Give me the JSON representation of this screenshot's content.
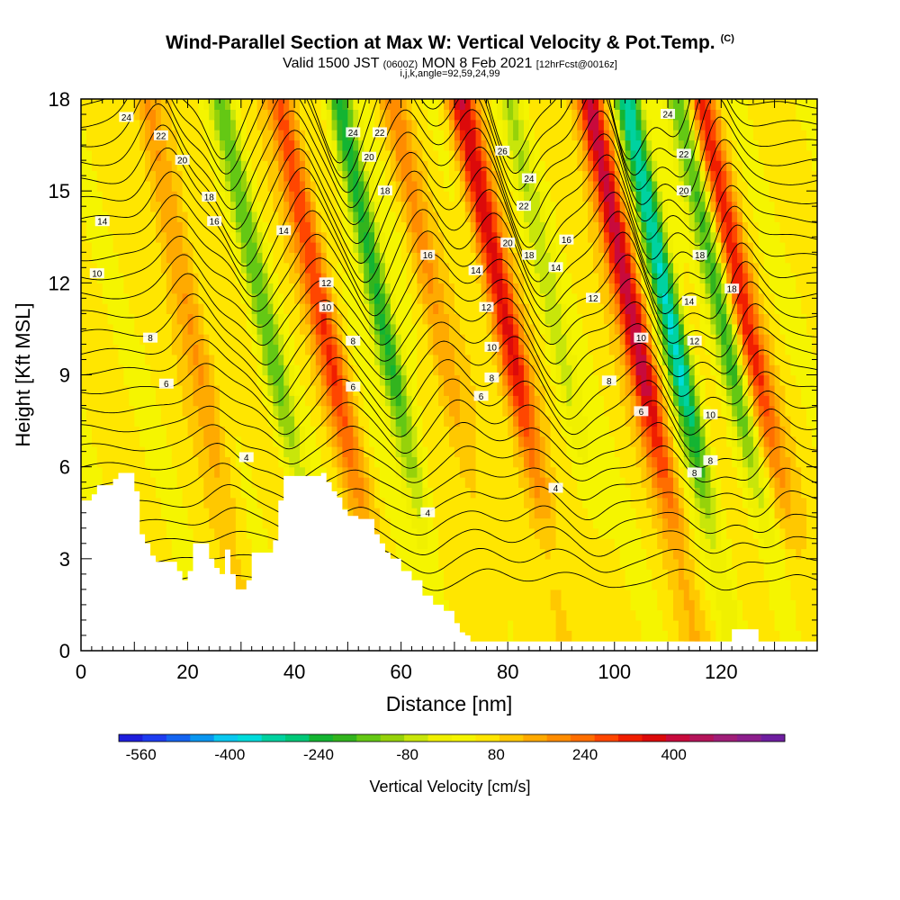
{
  "header": {
    "title": "Wind-Parallel Section at Max W: Vertical Velocity & Pot.Temp.",
    "copyright": "(C)",
    "valid_prefix": "Valid 1500 JST",
    "valid_utc": "(0600Z)",
    "valid_day": "MON 8 Feb 2021",
    "forecast": "[12hrFcst@0016z]",
    "indices": "i,j,k,angle=92,59,24,99"
  },
  "chart_data": {
    "type": "heatmap",
    "title": "Wind-Parallel Section at Max W: Vertical Velocity & Pot.Temp.",
    "xlabel": "Distance [nm]",
    "ylabel": "Height [Kft MSL]",
    "xlim": [
      0,
      138
    ],
    "ylim": [
      0,
      18
    ],
    "xticks": [
      0,
      20,
      40,
      60,
      80,
      100,
      120
    ],
    "yticks": [
      0,
      3,
      6,
      9,
      12,
      15,
      18
    ],
    "colorbar": {
      "label": "Vertical Velocity [cm/s]",
      "ticks": [
        -560,
        -400,
        -240,
        -80,
        80,
        240,
        400
      ],
      "range": [
        -600,
        600
      ],
      "colors": [
        "#1e1edc",
        "#1e3cf0",
        "#1464f0",
        "#0a96f0",
        "#0ac8f0",
        "#00dcdc",
        "#00d2a0",
        "#00c878",
        "#14b432",
        "#32b41e",
        "#64c814",
        "#96d20a",
        "#c8e60a",
        "#f0f000",
        "#f5f500",
        "#ffe600",
        "#ffc800",
        "#ffaa00",
        "#ff8c00",
        "#ff6e00",
        "#ff4600",
        "#f01e00",
        "#dc0a0a",
        "#c80a3c",
        "#b4145a",
        "#a01e78",
        "#8c1e8c",
        "#6e1ea0"
      ]
    },
    "updrafts": [
      {
        "x": 85,
        "w": 320
      },
      {
        "x": 109,
        "w": 380
      },
      {
        "x": 130,
        "w": 260
      },
      {
        "x": 51,
        "w": 240
      },
      {
        "x": 72,
        "w": 120
      },
      {
        "x": 26,
        "w": 140
      }
    ],
    "downdrafts": [
      {
        "x": 62,
        "w": -300
      },
      {
        "x": 116,
        "w": -420
      },
      {
        "x": 40,
        "w": -200
      },
      {
        "x": 94,
        "w": -120
      },
      {
        "x": 126,
        "w": -240
      }
    ],
    "contour_labels": [
      {
        "x": 8.5,
        "y": 17.4,
        "text": "24"
      },
      {
        "x": 15,
        "y": 16.8,
        "text": "22"
      },
      {
        "x": 19,
        "y": 16.0,
        "text": "20"
      },
      {
        "x": 24,
        "y": 14.8,
        "text": "18"
      },
      {
        "x": 25,
        "y": 14.0,
        "text": "16"
      },
      {
        "x": 4,
        "y": 14.0,
        "text": "14"
      },
      {
        "x": 38,
        "y": 13.7,
        "text": "14"
      },
      {
        "x": 3,
        "y": 12.3,
        "text": "10"
      },
      {
        "x": 46,
        "y": 12.0,
        "text": "12"
      },
      {
        "x": 46,
        "y": 11.2,
        "text": "10"
      },
      {
        "x": 13,
        "y": 10.2,
        "text": "8"
      },
      {
        "x": 16,
        "y": 8.7,
        "text": "6"
      },
      {
        "x": 31,
        "y": 6.3,
        "text": "4"
      },
      {
        "x": 51,
        "y": 10.1,
        "text": "8"
      },
      {
        "x": 51,
        "y": 8.6,
        "text": "6"
      },
      {
        "x": 51,
        "y": 16.9,
        "text": "24"
      },
      {
        "x": 56,
        "y": 16.9,
        "text": "22"
      },
      {
        "x": 54,
        "y": 16.1,
        "text": "20"
      },
      {
        "x": 57,
        "y": 15.0,
        "text": "18"
      },
      {
        "x": 65,
        "y": 12.9,
        "text": "16"
      },
      {
        "x": 74,
        "y": 12.4,
        "text": "14"
      },
      {
        "x": 76,
        "y": 11.2,
        "text": "12"
      },
      {
        "x": 77,
        "y": 9.9,
        "text": "10"
      },
      {
        "x": 77,
        "y": 8.9,
        "text": "8"
      },
      {
        "x": 75,
        "y": 8.3,
        "text": "6"
      },
      {
        "x": 65,
        "y": 4.5,
        "text": "4"
      },
      {
        "x": 79,
        "y": 16.3,
        "text": "26"
      },
      {
        "x": 84,
        "y": 15.4,
        "text": "24"
      },
      {
        "x": 83,
        "y": 14.5,
        "text": "22"
      },
      {
        "x": 80,
        "y": 13.3,
        "text": "20"
      },
      {
        "x": 84,
        "y": 12.9,
        "text": "18"
      },
      {
        "x": 91,
        "y": 13.4,
        "text": "16"
      },
      {
        "x": 89,
        "y": 12.5,
        "text": "14"
      },
      {
        "x": 96,
        "y": 11.5,
        "text": "12"
      },
      {
        "x": 105,
        "y": 10.2,
        "text": "10"
      },
      {
        "x": 99,
        "y": 8.8,
        "text": "8"
      },
      {
        "x": 105,
        "y": 7.8,
        "text": "6"
      },
      {
        "x": 89,
        "y": 5.3,
        "text": "4"
      },
      {
        "x": 110,
        "y": 17.5,
        "text": "24"
      },
      {
        "x": 113,
        "y": 16.2,
        "text": "22"
      },
      {
        "x": 113,
        "y": 15.0,
        "text": "20"
      },
      {
        "x": 116,
        "y": 12.9,
        "text": "18"
      },
      {
        "x": 122,
        "y": 11.8,
        "text": "18"
      },
      {
        "x": 114,
        "y": 11.4,
        "text": "14"
      },
      {
        "x": 115,
        "y": 10.1,
        "text": "12"
      },
      {
        "x": 118,
        "y": 7.7,
        "text": "10"
      },
      {
        "x": 118,
        "y": 6.2,
        "text": "8"
      },
      {
        "x": 115,
        "y": 5.8,
        "text": "8"
      }
    ],
    "terrain": [
      [
        0,
        4.9
      ],
      [
        1,
        4.9
      ],
      [
        2,
        5.1
      ],
      [
        3,
        5.4
      ],
      [
        6,
        5.6
      ],
      [
        7,
        5.8
      ],
      [
        9,
        5.8
      ],
      [
        10,
        5.2
      ],
      [
        11,
        3.8
      ],
      [
        12,
        3.5
      ],
      [
        13,
        3.1
      ],
      [
        14,
        2.9
      ],
      [
        17,
        2.9
      ],
      [
        18,
        2.6
      ],
      [
        19,
        2.3
      ],
      [
        20,
        2.6
      ],
      [
        21,
        3.5
      ],
      [
        23,
        3.5
      ],
      [
        24,
        3.0
      ],
      [
        25,
        2.7
      ],
      [
        26,
        2.5
      ],
      [
        27,
        3.3
      ],
      [
        28,
        2.5
      ],
      [
        29,
        2.0
      ],
      [
        31,
        2.3
      ],
      [
        32,
        3.2
      ],
      [
        35,
        3.2
      ],
      [
        36,
        3.6
      ],
      [
        37,
        4.9
      ],
      [
        38,
        5.7
      ],
      [
        45,
        5.8
      ],
      [
        46,
        5.5
      ],
      [
        47,
        5.2
      ],
      [
        48,
        5.0
      ],
      [
        49,
        4.6
      ],
      [
        50,
        4.4
      ],
      [
        52,
        4.3
      ],
      [
        54,
        4.3
      ],
      [
        55,
        3.8
      ],
      [
        56,
        3.5
      ],
      [
        57,
        3.2
      ],
      [
        58,
        3.0
      ],
      [
        60,
        2.6
      ],
      [
        62,
        2.3
      ],
      [
        64,
        1.8
      ],
      [
        66,
        1.5
      ],
      [
        68,
        1.3
      ],
      [
        70,
        0.9
      ],
      [
        71,
        0.6
      ],
      [
        72,
        0.5
      ],
      [
        73,
        0.3
      ],
      [
        78,
        0.3
      ],
      [
        80,
        0.3
      ],
      [
        100,
        0.3
      ],
      [
        121,
        0.3
      ],
      [
        122,
        0.7
      ],
      [
        126,
        0.7
      ],
      [
        127,
        0.3
      ],
      [
        138,
        0.3
      ]
    ]
  }
}
